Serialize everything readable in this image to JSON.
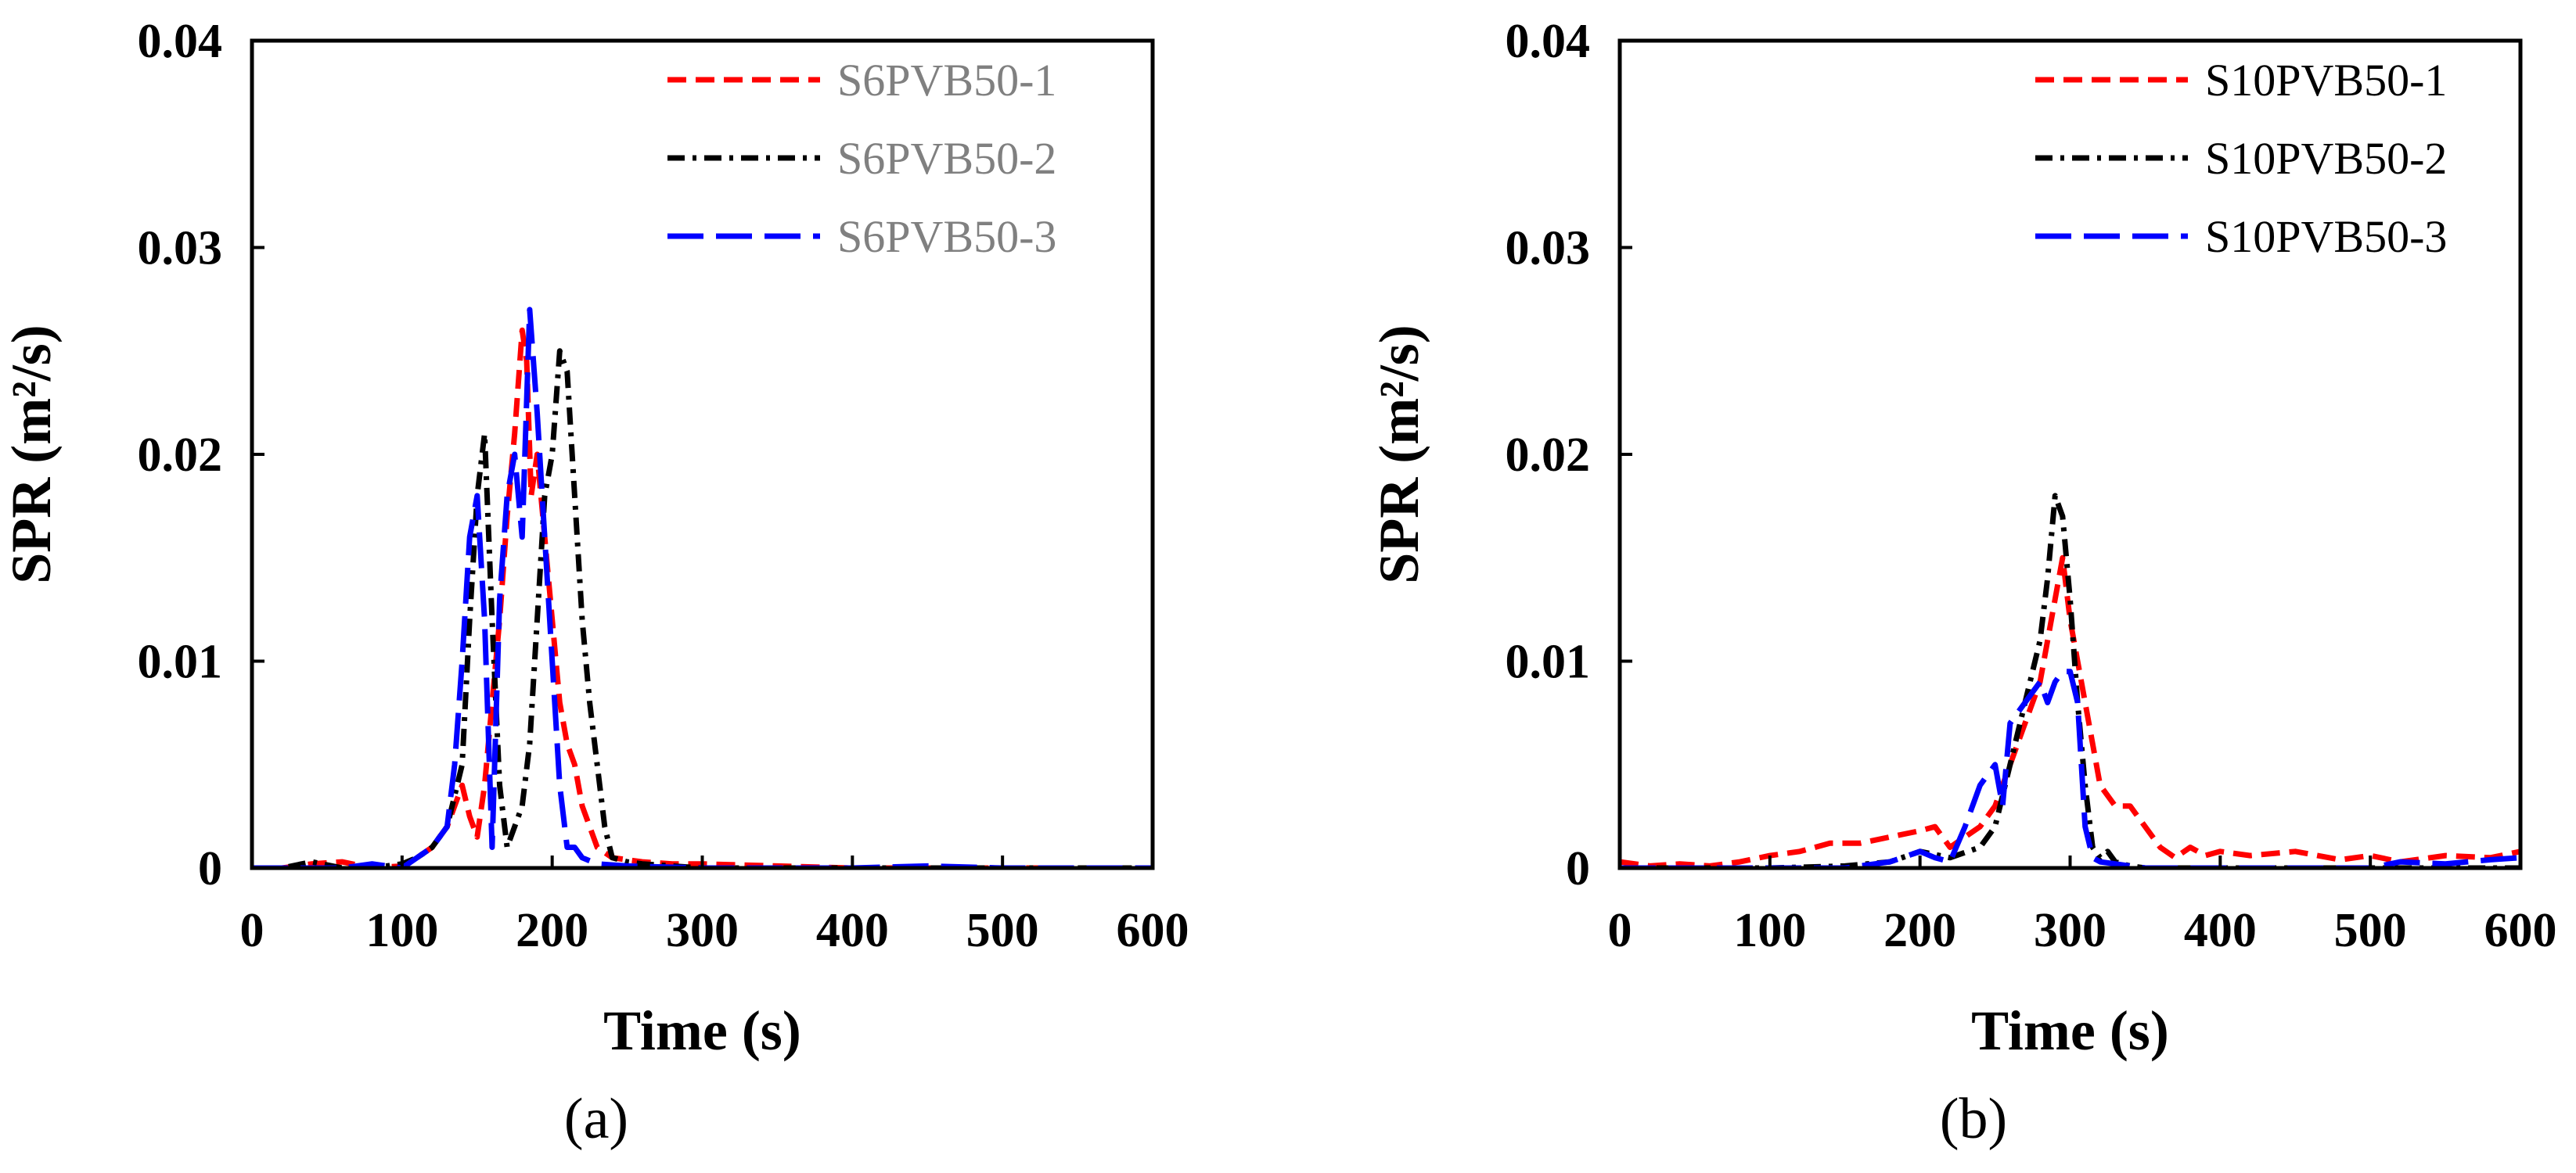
{
  "chart_data": [
    {
      "type": "line",
      "panel_label": "(a)",
      "xlabel": "Time (s)",
      "ylabel": "SPR (m²/s)",
      "xlim": [
        0,
        600
      ],
      "ylim": [
        0,
        0.04
      ],
      "xticks": [
        0,
        100,
        200,
        300,
        400,
        500,
        600
      ],
      "xtick_labels": [
        "0",
        "100",
        "200",
        "300",
        "400",
        "500",
        "600"
      ],
      "yticks": [
        0,
        0.01,
        0.02,
        0.03,
        0.04
      ],
      "ytick_labels": [
        "0",
        "0.01",
        "0.02",
        "0.03",
        "0.04"
      ],
      "legend_position": "top-right",
      "legend_text_color": "#808080",
      "grid": false,
      "series": [
        {
          "name": "S6PVB50-1",
          "color": "#ff0000",
          "dash": "short-dash",
          "x": [
            0,
            20,
            40,
            60,
            80,
            100,
            110,
            120,
            130,
            135,
            140,
            145,
            150,
            155,
            160,
            165,
            170,
            175,
            180,
            183,
            186,
            190,
            195,
            200,
            205,
            210,
            215,
            220,
            230,
            240,
            260,
            280,
            300,
            350,
            400,
            450,
            500,
            550,
            600
          ],
          "y": [
            0,
            0,
            0.0002,
            0.0003,
            0,
            0.0001,
            0.0005,
            0.001,
            0.002,
            0.003,
            0.004,
            0.0025,
            0.0015,
            0.004,
            0.008,
            0.012,
            0.017,
            0.021,
            0.026,
            0.0245,
            0.018,
            0.02,
            0.016,
            0.012,
            0.008,
            0.006,
            0.005,
            0.003,
            0.001,
            0.0005,
            0.0003,
            0.0002,
            0.0002,
            0.0001,
            0,
            0,
            0,
            0,
            0
          ]
        },
        {
          "name": "S6PVB50-2",
          "color": "#000000",
          "dash": "dash-dot",
          "x": [
            0,
            20,
            40,
            60,
            80,
            100,
            110,
            120,
            130,
            140,
            145,
            150,
            155,
            160,
            165,
            170,
            175,
            180,
            185,
            190,
            195,
            200,
            205,
            210,
            215,
            220,
            225,
            230,
            235,
            240,
            250,
            260,
            280,
            300,
            350,
            400,
            450,
            500,
            550,
            600
          ],
          "y": [
            0,
            0,
            0.0003,
            0,
            0,
            0.0002,
            0.0005,
            0.001,
            0.002,
            0.005,
            0.012,
            0.018,
            0.021,
            0.012,
            0.004,
            0.001,
            0.002,
            0.003,
            0.006,
            0.012,
            0.018,
            0.02,
            0.025,
            0.024,
            0.018,
            0.012,
            0.008,
            0.005,
            0.002,
            0.0005,
            0.0003,
            0.0002,
            0.0001,
            0,
            0,
            0,
            0,
            0,
            0,
            0
          ]
        },
        {
          "name": "S6PVB50-3",
          "color": "#0000ff",
          "dash": "long-dash",
          "x": [
            0,
            20,
            40,
            60,
            80,
            90,
            100,
            110,
            120,
            130,
            135,
            140,
            145,
            150,
            155,
            160,
            165,
            170,
            175,
            180,
            185,
            190,
            195,
            200,
            205,
            210,
            215,
            220,
            230,
            250,
            300,
            350,
            400,
            450,
            500,
            550,
            600
          ],
          "y": [
            0,
            0,
            0,
            0,
            0.0002,
            0.0001,
            0,
            0.0005,
            0.001,
            0.002,
            0.005,
            0.01,
            0.016,
            0.018,
            0.012,
            0.001,
            0.013,
            0.018,
            0.02,
            0.016,
            0.027,
            0.022,
            0.016,
            0.01,
            0.004,
            0.001,
            0.001,
            0.0005,
            0.0002,
            0.0001,
            0,
            0,
            0,
            0.0001,
            0,
            0,
            0
          ]
        }
      ]
    },
    {
      "type": "line",
      "panel_label": "(b)",
      "xlabel": "Time (s)",
      "ylabel": "SPR (m²/s)",
      "xlim": [
        0,
        600
      ],
      "ylim": [
        0,
        0.04
      ],
      "xticks": [
        0,
        100,
        200,
        300,
        400,
        500,
        600
      ],
      "xtick_labels": [
        "0",
        "100",
        "200",
        "300",
        "400",
        "500",
        "600"
      ],
      "yticks": [
        0,
        0.01,
        0.02,
        0.03,
        0.04
      ],
      "ytick_labels": [
        "0",
        "0.01",
        "0.02",
        "0.03",
        "0.04"
      ],
      "legend_position": "top-right",
      "legend_text_color": "#000000",
      "grid": false,
      "series": [
        {
          "name": "S10PVB50-1",
          "color": "#ff0000",
          "dash": "short-dash",
          "x": [
            0,
            20,
            40,
            60,
            80,
            100,
            120,
            140,
            160,
            180,
            200,
            210,
            220,
            240,
            250,
            260,
            270,
            280,
            290,
            295,
            300,
            305,
            310,
            315,
            320,
            330,
            340,
            350,
            360,
            370,
            380,
            390,
            400,
            420,
            450,
            480,
            500,
            520,
            550,
            580,
            600
          ],
          "y": [
            0.0003,
            0.0001,
            0.0002,
            0.0001,
            0.0003,
            0.0006,
            0.0008,
            0.0012,
            0.0012,
            0.0015,
            0.0018,
            0.002,
            0.001,
            0.002,
            0.003,
            0.005,
            0.007,
            0.009,
            0.013,
            0.015,
            0.012,
            0.01,
            0.008,
            0.006,
            0.004,
            0.003,
            0.003,
            0.002,
            0.001,
            0.0005,
            0.001,
            0.0006,
            0.0008,
            0.0006,
            0.0008,
            0.0004,
            0.0006,
            0.0003,
            0.0006,
            0.0005,
            0.0008
          ]
        },
        {
          "name": "S10PVB50-2",
          "color": "#000000",
          "dash": "dash-dot",
          "x": [
            0,
            50,
            100,
            150,
            180,
            200,
            220,
            240,
            250,
            260,
            270,
            280,
            285,
            290,
            295,
            300,
            305,
            310,
            315,
            320,
            325,
            330,
            340,
            350,
            400,
            450,
            500,
            550,
            600
          ],
          "y": [
            0,
            0,
            0,
            0.0001,
            0.0003,
            0.0008,
            0.0005,
            0.001,
            0.002,
            0.005,
            0.008,
            0.011,
            0.014,
            0.018,
            0.017,
            0.013,
            0.008,
            0.004,
            0.001,
            0.0005,
            0.0008,
            0.0003,
            0.0001,
            0,
            0,
            0,
            0,
            0,
            0
          ]
        },
        {
          "name": "S10PVB50-3",
          "color": "#0000ff",
          "dash": "long-dash",
          "x": [
            0,
            20,
            50,
            100,
            150,
            180,
            200,
            210,
            220,
            230,
            240,
            250,
            255,
            260,
            270,
            280,
            285,
            290,
            295,
            300,
            305,
            310,
            315,
            320,
            330,
            340,
            350,
            400,
            450,
            500,
            520,
            550,
            580,
            600
          ],
          "y": [
            0,
            0,
            0,
            0,
            0,
            0.0003,
            0.0008,
            0.0005,
            0.0003,
            0.002,
            0.004,
            0.005,
            0.003,
            0.007,
            0.008,
            0.009,
            0.008,
            0.009,
            0.0095,
            0.0095,
            0.008,
            0.002,
            0.0005,
            0.0003,
            0.0002,
            0.0001,
            0,
            0,
            0,
            0,
            0.0003,
            0.0002,
            0.0004,
            0.0005
          ]
        }
      ]
    }
  ]
}
